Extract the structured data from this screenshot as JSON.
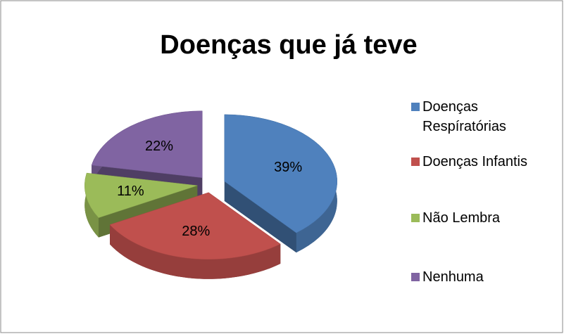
{
  "chart_data": {
    "type": "pie",
    "title": "Doenças que já teve",
    "categories": [
      "Doenças Respíratórias",
      "Doenças Infantis",
      "Não Lembra",
      "Nenhuma"
    ],
    "values": [
      39,
      28,
      11,
      22
    ],
    "value_labels": [
      "39%",
      "28%",
      "11%",
      "22%"
    ],
    "colors": [
      "#4f81bd",
      "#c0504d",
      "#9bbb59",
      "#8064a2"
    ],
    "legend": "right"
  }
}
